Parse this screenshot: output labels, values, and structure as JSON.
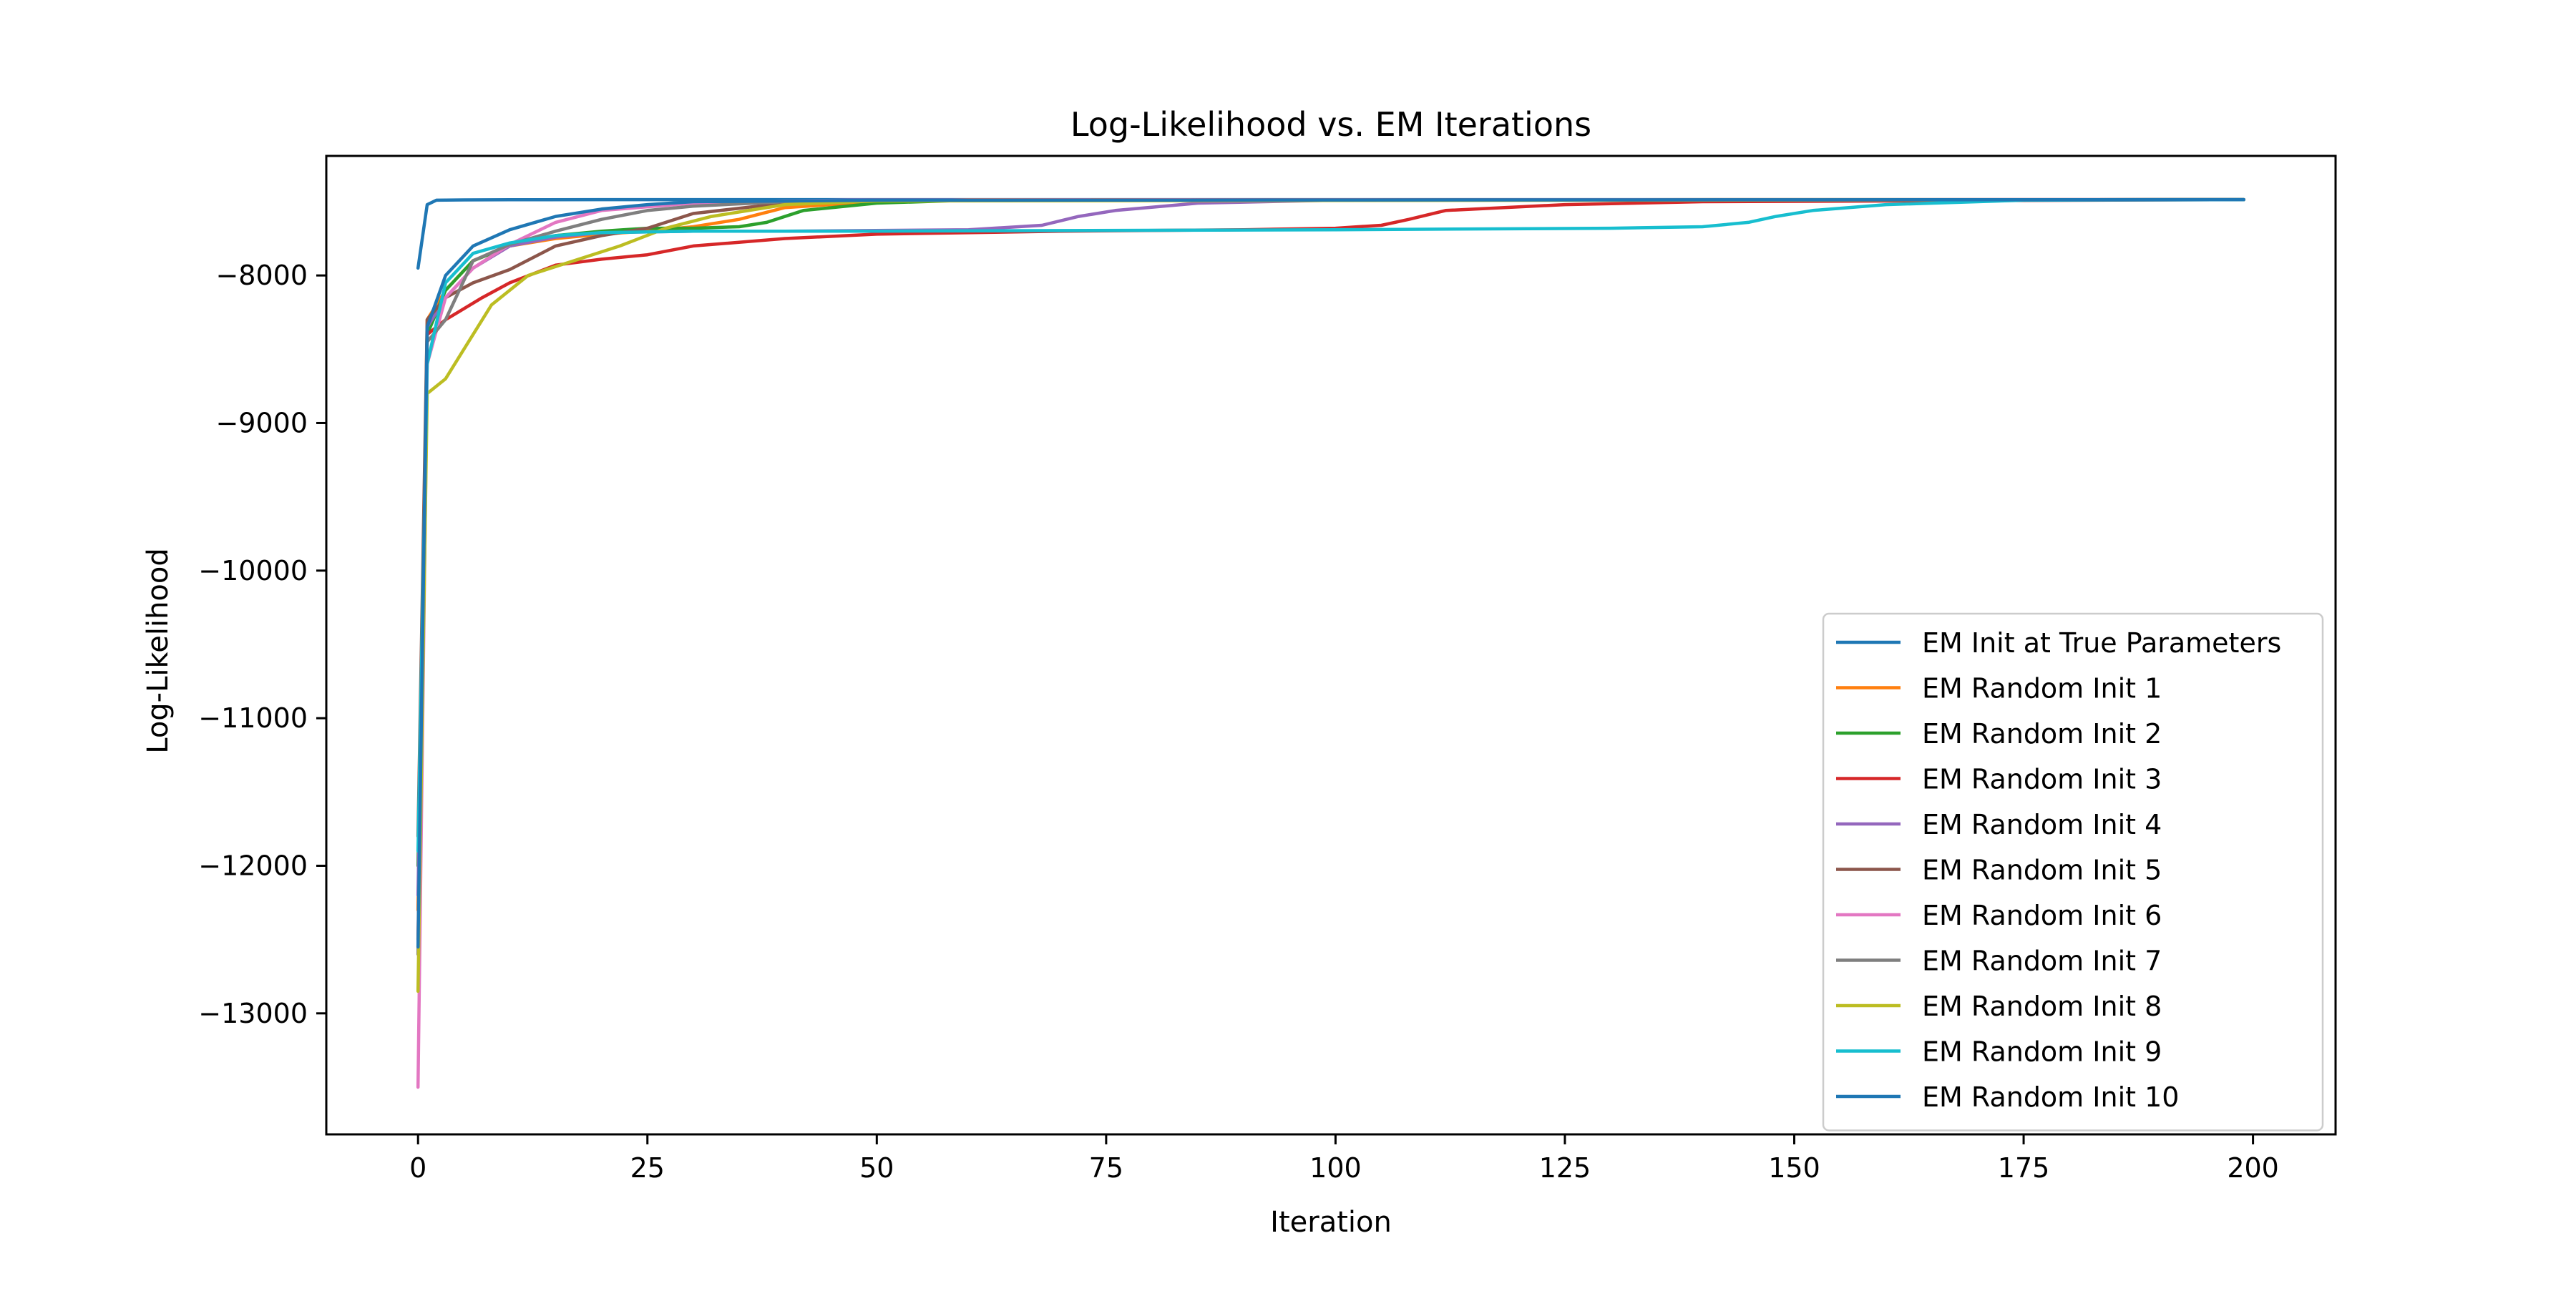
{
  "chart_data": {
    "type": "line",
    "title": "Log-Likelihood vs. EM Iterations",
    "xlabel": "Iteration",
    "ylabel": "Log-Likelihood",
    "xlim": [
      -10,
      209
    ],
    "ylim": [
      -13820,
      -7190
    ],
    "xticks": [
      0,
      25,
      50,
      75,
      100,
      125,
      150,
      175,
      200
    ],
    "xtick_labels": [
      "0",
      "25",
      "50",
      "75",
      "100",
      "125",
      "150",
      "175",
      "200"
    ],
    "yticks": [
      -13000,
      -12000,
      -11000,
      -10000,
      -9000,
      -8000
    ],
    "ytick_labels": [
      "−13000",
      "−12000",
      "−11000",
      "−10000",
      "−9000",
      "−8000"
    ],
    "grid": false,
    "legend_position": "lower-right",
    "series": [
      {
        "name": "EM Init at True Parameters",
        "color": "#1f77b4",
        "x": [
          0,
          1,
          2,
          5,
          10,
          20,
          50,
          100,
          199
        ],
        "y": [
          -7950,
          -7520,
          -7490,
          -7488,
          -7487,
          -7486,
          -7486,
          -7486,
          -7486
        ]
      },
      {
        "name": "EM Random Init 1",
        "color": "#ff7f0e",
        "x": [
          0,
          1,
          3,
          6,
          10,
          15,
          20,
          25,
          30,
          35,
          40,
          50,
          60,
          199
        ],
        "y": [
          -12300,
          -8300,
          -8100,
          -7900,
          -7800,
          -7750,
          -7720,
          -7700,
          -7670,
          -7620,
          -7540,
          -7500,
          -7487,
          -7486
        ]
      },
      {
        "name": "EM Random Init 2",
        "color": "#2ca02c",
        "x": [
          0,
          1,
          3,
          6,
          10,
          15,
          20,
          25,
          30,
          35,
          38,
          42,
          50,
          60,
          199
        ],
        "y": [
          -12000,
          -8400,
          -8100,
          -7900,
          -7800,
          -7730,
          -7700,
          -7680,
          -7680,
          -7670,
          -7640,
          -7560,
          -7510,
          -7490,
          -7486
        ]
      },
      {
        "name": "EM Random Init 3",
        "color": "#d62728",
        "x": [
          0,
          1,
          3,
          7,
          10,
          15,
          20,
          25,
          30,
          40,
          50,
          70,
          90,
          100,
          105,
          108,
          112,
          125,
          140,
          199
        ],
        "y": [
          -12500,
          -8400,
          -8300,
          -8150,
          -8050,
          -7930,
          -7890,
          -7860,
          -7800,
          -7750,
          -7720,
          -7700,
          -7690,
          -7680,
          -7660,
          -7620,
          -7560,
          -7520,
          -7500,
          -7486
        ]
      },
      {
        "name": "EM Random Init 4",
        "color": "#9467bd",
        "x": [
          0,
          1,
          3,
          6,
          10,
          15,
          20,
          30,
          40,
          60,
          68,
          72,
          76,
          85,
          100,
          199
        ],
        "y": [
          -12200,
          -8350,
          -8150,
          -7950,
          -7800,
          -7740,
          -7710,
          -7700,
          -7700,
          -7690,
          -7660,
          -7600,
          -7560,
          -7510,
          -7490,
          -7486
        ]
      },
      {
        "name": "EM Random Init 5",
        "color": "#8c564b",
        "x": [
          0,
          1,
          3,
          6,
          10,
          15,
          20,
          25,
          30,
          40,
          50,
          199
        ],
        "y": [
          -11800,
          -8300,
          -8150,
          -8050,
          -7960,
          -7800,
          -7730,
          -7680,
          -7580,
          -7510,
          -7490,
          -7486
        ]
      },
      {
        "name": "EM Random Init 6",
        "color": "#e377c2",
        "x": [
          0,
          1,
          3,
          6,
          10,
          15,
          20,
          30,
          40,
          50,
          199
        ],
        "y": [
          -13500,
          -8600,
          -8150,
          -7950,
          -7790,
          -7640,
          -7560,
          -7510,
          -7495,
          -7488,
          -7486
        ]
      },
      {
        "name": "EM Random Init 7",
        "color": "#7f7f7f",
        "x": [
          0,
          1,
          3,
          6,
          10,
          15,
          20,
          25,
          30,
          40,
          50,
          199
        ],
        "y": [
          -12600,
          -8450,
          -8300,
          -7900,
          -7790,
          -7700,
          -7620,
          -7560,
          -7530,
          -7500,
          -7490,
          -7486
        ]
      },
      {
        "name": "EM Random Init 8",
        "color": "#bcbd22",
        "x": [
          0,
          1,
          3,
          5,
          8,
          12,
          17,
          22,
          27,
          32,
          40,
          50,
          199
        ],
        "y": [
          -12850,
          -8800,
          -8700,
          -8500,
          -8200,
          -8000,
          -7900,
          -7800,
          -7680,
          -7600,
          -7520,
          -7495,
          -7486
        ]
      },
      {
        "name": "EM Random Init 9",
        "color": "#17becf",
        "x": [
          0,
          1,
          3,
          6,
          10,
          15,
          20,
          30,
          50,
          100,
          130,
          140,
          145,
          148,
          152,
          160,
          175,
          199
        ],
        "y": [
          -11900,
          -8600,
          -8050,
          -7850,
          -7780,
          -7730,
          -7710,
          -7700,
          -7700,
          -7690,
          -7680,
          -7670,
          -7640,
          -7600,
          -7560,
          -7520,
          -7490,
          -7486
        ]
      },
      {
        "name": "EM Random Init 10",
        "color": "#1f77b4",
        "x": [
          0,
          1,
          3,
          6,
          10,
          15,
          20,
          25,
          30,
          50,
          199
        ],
        "y": [
          -12550,
          -8350,
          -8000,
          -7800,
          -7690,
          -7600,
          -7550,
          -7520,
          -7500,
          -7490,
          -7486
        ]
      }
    ]
  }
}
